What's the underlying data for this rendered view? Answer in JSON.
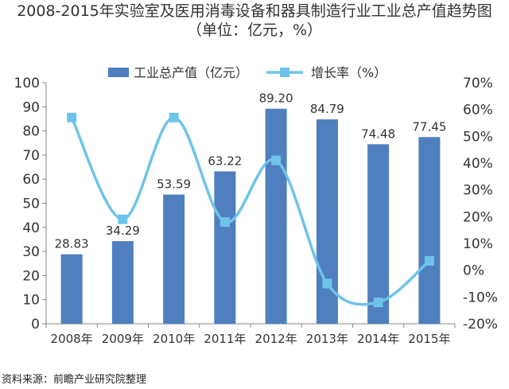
{
  "chart_data": {
    "type": "bar+line",
    "title": "2008-2015年实验室及医用消毒设备和器具制造行业工业总产值趋势图",
    "subtitle": "（单位：亿元，%）",
    "categories": [
      "2008年",
      "2009年",
      "2010年",
      "2011年",
      "2012年",
      "2013年",
      "2014年",
      "2015年"
    ],
    "series": [
      {
        "name": "工业总产值（亿元）",
        "type": "bar",
        "axis": "left",
        "color": "#4f7fbf",
        "values": [
          28.83,
          34.29,
          53.59,
          63.22,
          89.2,
          84.79,
          74.48,
          77.45
        ],
        "labels": [
          "28.83",
          "34.29",
          "53.59",
          "63.22",
          "89.20",
          "84.79",
          "74.48",
          "77.45"
        ]
      },
      {
        "name": "增长率（%）",
        "type": "line",
        "axis": "right",
        "color": "#6ec3ea",
        "smooth": true,
        "values": [
          57,
          19,
          57,
          18,
          41,
          -5,
          -12,
          3.5
        ]
      }
    ],
    "y_left": {
      "min": 0,
      "max": 100,
      "ticks": [
        0,
        10,
        20,
        30,
        40,
        50,
        60,
        70,
        80,
        90,
        100
      ],
      "tick_labels": [
        "0",
        "10",
        "20",
        "30",
        "40",
        "50",
        "60",
        "70",
        "80",
        "90",
        "100"
      ]
    },
    "y_right": {
      "min": -20,
      "max": 70,
      "ticks": [
        -20,
        -10,
        0,
        10,
        20,
        30,
        40,
        50,
        60,
        70
      ],
      "tick_labels": [
        "-20%",
        "-10%",
        "0%",
        "10%",
        "20%",
        "30%",
        "40%",
        "50%",
        "60%",
        "70%"
      ]
    },
    "grid": false,
    "legend_position": "top"
  },
  "source": "资料来源：前瞻产业研究院整理"
}
